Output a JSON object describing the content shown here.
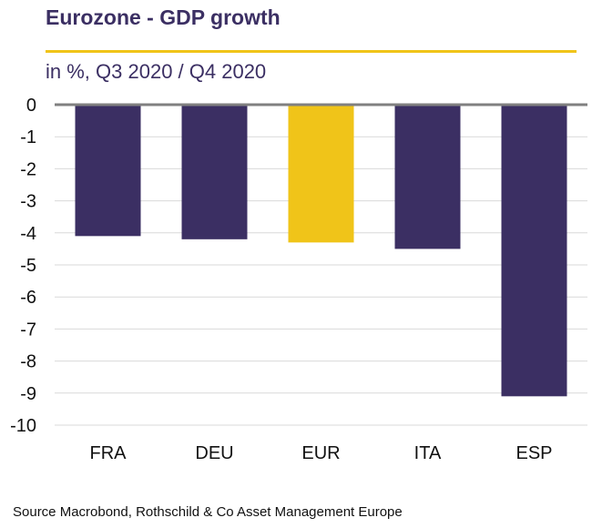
{
  "title": "Eurozone - GDP growth",
  "subtitle": "in %, Q3 2020 / Q4 2020",
  "source": "Source Macrobond, Rothschild  & Co Asset Management Europe",
  "colors": {
    "series": "#3b2f63",
    "highlight": "#f0c419",
    "title": "#3b2f63",
    "zero_line": "#808080",
    "grid": "#d9d9d9"
  },
  "chart_data": {
    "type": "bar",
    "categories": [
      "FRA",
      "DEU",
      "EUR",
      "ITA",
      "ESP"
    ],
    "values": [
      -4.1,
      -4.2,
      -4.3,
      -4.5,
      -9.1
    ],
    "highlight_category": "EUR",
    "ylim": [
      -10,
      0
    ],
    "yticks": [
      0,
      -1,
      -2,
      -3,
      -4,
      -5,
      -6,
      -7,
      -8,
      -9,
      -10
    ],
    "grid": "horizontal",
    "legend": "none",
    "xlabel": "",
    "ylabel": ""
  }
}
